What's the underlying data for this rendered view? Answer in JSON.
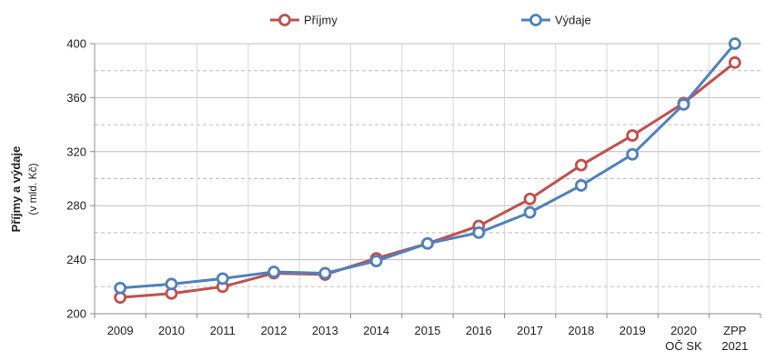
{
  "chart_data": {
    "type": "line",
    "categories": [
      [
        "2009"
      ],
      [
        "2010"
      ],
      [
        "2011"
      ],
      [
        "2012"
      ],
      [
        "2013"
      ],
      [
        "2014"
      ],
      [
        "2015"
      ],
      [
        "2016"
      ],
      [
        "2017"
      ],
      [
        "2018"
      ],
      [
        "2019"
      ],
      [
        "2020",
        "OČ SK"
      ],
      [
        "ZPP",
        "2021"
      ]
    ],
    "series": [
      {
        "name": "Příjmy",
        "color": "#c0504d",
        "values": [
          212,
          215,
          220,
          230,
          229,
          241,
          252,
          265,
          285,
          310,
          332,
          356,
          386
        ]
      },
      {
        "name": "Výdaje",
        "color": "#4f81bd",
        "values": [
          219,
          222,
          226,
          231,
          230,
          239,
          252,
          260,
          275,
          295,
          318,
          355,
          400
        ]
      }
    ],
    "ylabel": "Příjmy a výdaje",
    "ylabel_unit": "(v mld. Kč)",
    "ylim": [
      200,
      400
    ],
    "yticks": [
      200,
      240,
      280,
      320,
      360,
      400
    ],
    "grid": true,
    "legend": "top-center"
  }
}
